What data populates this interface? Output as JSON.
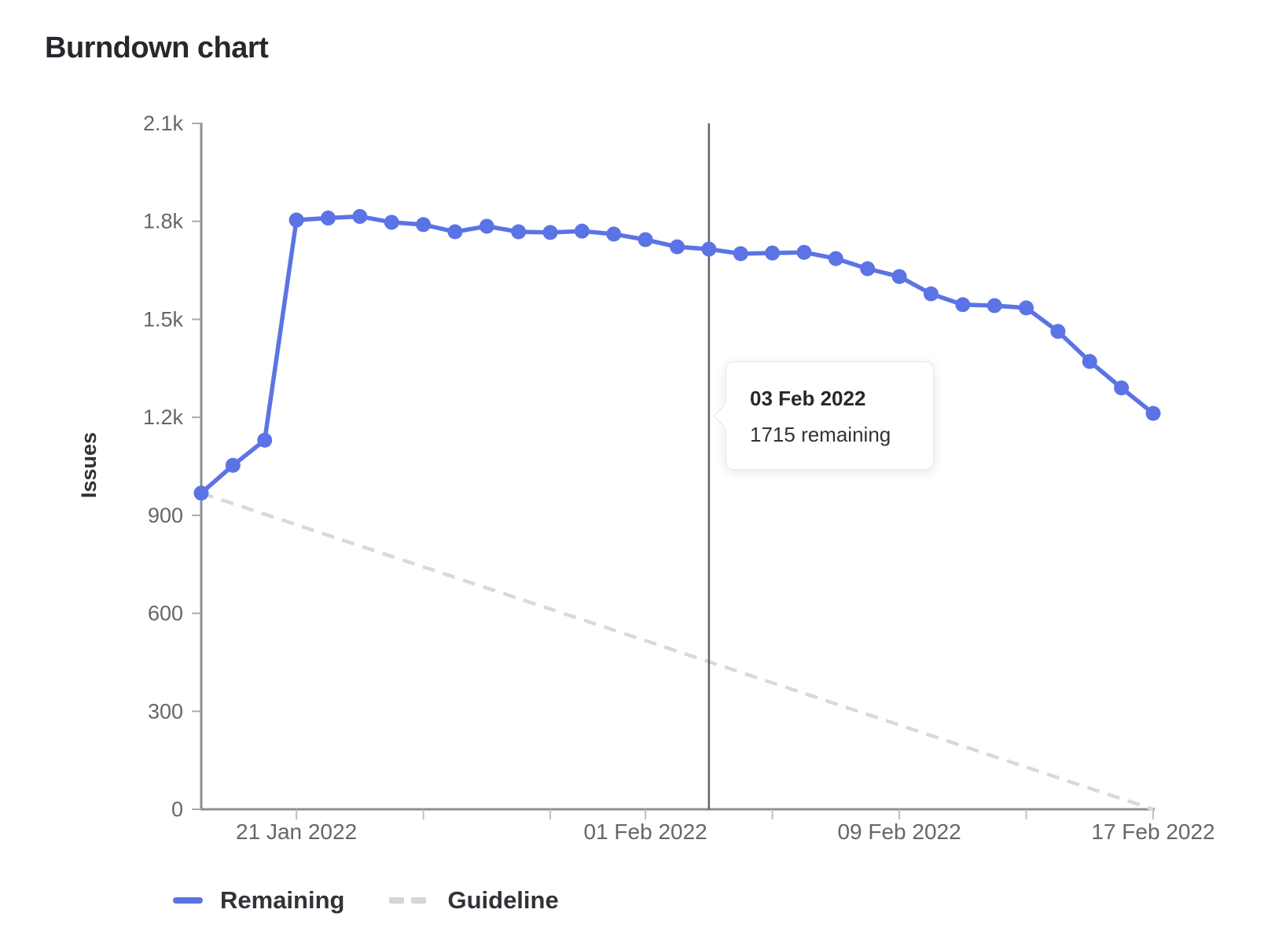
{
  "title": "Burndown chart",
  "y_axis_label": "Issues",
  "legend": {
    "items": [
      {
        "label": "Remaining",
        "swatch": "solid-line"
      },
      {
        "label": "Guideline",
        "swatch": "dashed-line"
      }
    ]
  },
  "tooltip": {
    "title": "03 Feb 2022",
    "body": "1715 remaining"
  },
  "colors": {
    "remaining": "#5c73e5",
    "guideline": "#d9d9d9",
    "today_line": "#636369",
    "axis_line": "#8d8d94",
    "tick_label": "#666666",
    "text_dark": "#333238"
  },
  "chart_data": {
    "type": "line",
    "title": "Burndown chart",
    "xlabel": "",
    "ylabel": "Issues",
    "ylim": [
      0,
      2100
    ],
    "grid": false,
    "legend_position": "bottom-left",
    "x": [
      "18 Jan 2022",
      "19 Jan 2022",
      "20 Jan 2022",
      "21 Jan 2022",
      "22 Jan 2022",
      "23 Jan 2022",
      "24 Jan 2022",
      "25 Jan 2022",
      "26 Jan 2022",
      "27 Jan 2022",
      "28 Jan 2022",
      "29 Jan 2022",
      "30 Jan 2022",
      "31 Jan 2022",
      "01 Feb 2022",
      "02 Feb 2022",
      "03 Feb 2022",
      "04 Feb 2022",
      "05 Feb 2022",
      "06 Feb 2022",
      "07 Feb 2022",
      "08 Feb 2022",
      "09 Feb 2022",
      "10 Feb 2022",
      "11 Feb 2022",
      "12 Feb 2022",
      "13 Feb 2022",
      "14 Feb 2022",
      "15 Feb 2022",
      "16 Feb 2022",
      "17 Feb 2022"
    ],
    "series": [
      {
        "name": "Remaining",
        "style": "solid line with point markers",
        "values": [
          968,
          1053,
          1130,
          1804,
          1810,
          1815,
          1797,
          1790,
          1768,
          1785,
          1768,
          1766,
          1770,
          1761,
          1744,
          1722,
          1715,
          1701,
          1703,
          1705,
          1686,
          1655,
          1631,
          1578,
          1545,
          1542,
          1535,
          1463,
          1371,
          1290,
          1212
        ]
      },
      {
        "name": "Guideline",
        "style": "dashed straight line",
        "start_value": 968,
        "end_value": 0
      }
    ],
    "hover_point": {
      "index": 16,
      "date": "03 Feb 2022",
      "remaining": 1715
    },
    "y_ticks": [
      {
        "value": 0,
        "label": "0"
      },
      {
        "value": 300,
        "label": "300"
      },
      {
        "value": 600,
        "label": "600"
      },
      {
        "value": 900,
        "label": "900"
      },
      {
        "value": 1200,
        "label": "1.2k"
      },
      {
        "value": 1500,
        "label": "1.5k"
      },
      {
        "value": 1800,
        "label": "1.8k"
      },
      {
        "value": 2100,
        "label": "2.1k"
      }
    ],
    "x_ticks": [
      {
        "index": 3,
        "label": "21 Jan 2022"
      },
      {
        "index": 7,
        "label": ""
      },
      {
        "index": 11,
        "label": ""
      },
      {
        "index": 14,
        "label": "01 Feb 2022"
      },
      {
        "index": 18,
        "label": ""
      },
      {
        "index": 22,
        "label": "09 Feb 2022"
      },
      {
        "index": 26,
        "label": ""
      },
      {
        "index": 30,
        "label": "17 Feb 2022"
      }
    ]
  }
}
